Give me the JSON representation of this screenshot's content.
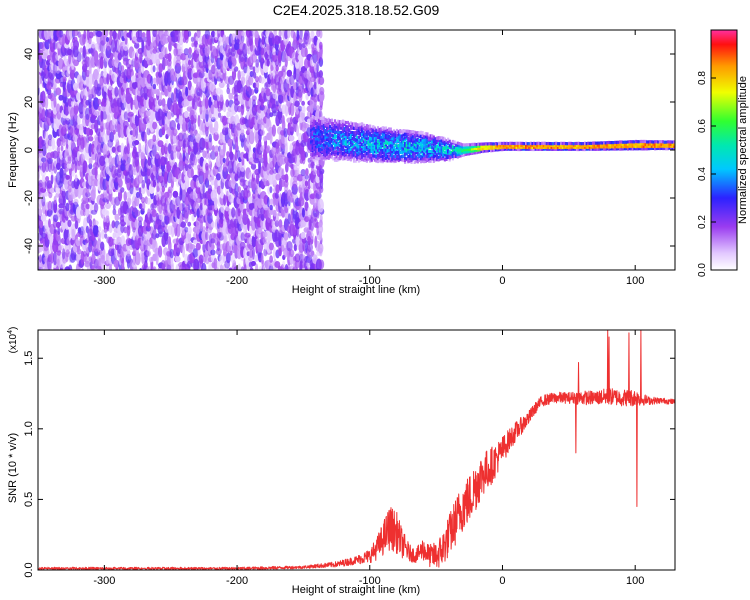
{
  "figure_title": "C2E4.2025.318.18.52.G09",
  "chart_data": [
    {
      "type": "heatmap",
      "name": "spectrogram",
      "title": "C2E4.2025.318.18.52.G09",
      "xlabel": "Height of straight line (km)",
      "ylabel": "Frequency (Hz)",
      "xlim": [
        -350,
        130
      ],
      "ylim": [
        -50,
        50
      ],
      "x_ticks": [
        -300,
        -200,
        -100,
        0,
        100
      ],
      "x_tick_labels": [
        "-300",
        "-200",
        "-100",
        "0",
        "100"
      ],
      "y_ticks": [
        -40,
        -20,
        0,
        20,
        40
      ],
      "y_tick_labels": [
        "-40",
        "-20",
        "0",
        "20",
        "40"
      ],
      "noise_region": {
        "x_range": [
          -350,
          -135
        ],
        "freq_range": [
          -50,
          50
        ],
        "amplitude_range": [
          0.05,
          0.25
        ]
      },
      "signal_band": [
        {
          "x": -145,
          "center": 5,
          "half_width": 9,
          "peak": 0.35
        },
        {
          "x": -120,
          "center": 4,
          "half_width": 8,
          "peak": 0.45
        },
        {
          "x": -90,
          "center": 2,
          "half_width": 7,
          "peak": 0.5
        },
        {
          "x": -60,
          "center": 1,
          "half_width": 6,
          "peak": 0.5
        },
        {
          "x": -40,
          "center": 0,
          "half_width": 4,
          "peak": 0.5
        },
        {
          "x": -30,
          "center": 0,
          "half_width": 2,
          "peak": 0.6
        },
        {
          "x": -15,
          "center": 1,
          "half_width": 1.5,
          "peak": 0.85
        },
        {
          "x": 0,
          "center": 1.5,
          "half_width": 1.2,
          "peak": 0.95
        },
        {
          "x": 60,
          "center": 1.5,
          "half_width": 1.2,
          "peak": 0.95
        },
        {
          "x": 100,
          "center": 2,
          "half_width": 1.5,
          "peak": 0.95
        },
        {
          "x": 130,
          "center": 2,
          "half_width": 1.3,
          "peak": 0.95
        }
      ],
      "colorbar": {
        "label": "Normalized spectral amplitude",
        "range": [
          0,
          1
        ],
        "ticks": [
          0.0,
          0.2,
          0.4,
          0.6,
          0.8
        ],
        "tick_labels": [
          "0.0",
          "0.2",
          "0.4",
          "0.6",
          "0.8"
        ]
      }
    },
    {
      "type": "line",
      "name": "snr",
      "xlabel": "Height of straight line (km)",
      "ylabel": "SNR (10 * v/v)",
      "y_multiplier_label": "(x10",
      "y_multiplier_exponent": "4",
      "y_multiplier_close": ")",
      "xlim": [
        -350,
        130
      ],
      "ylim": [
        0,
        1.7
      ],
      "x_ticks": [
        -300,
        -200,
        -100,
        0,
        100
      ],
      "x_tick_labels": [
        "-300",
        "-200",
        "-100",
        "0",
        "100"
      ],
      "y_ticks": [
        0.0,
        0.5,
        1.0,
        1.5
      ],
      "y_tick_labels": [
        "0.0",
        "0.5",
        "1.0",
        "1.5"
      ],
      "color": "#ee3030",
      "x": [
        -350,
        -300,
        -250,
        -200,
        -150,
        -125,
        -110,
        -100,
        -95,
        -90,
        -85,
        -80,
        -75,
        -70,
        -65,
        -60,
        -55,
        -50,
        -45,
        -40,
        -35,
        -30,
        -25,
        -20,
        -15,
        -10,
        -5,
        0,
        5,
        10,
        15,
        20,
        25,
        30,
        40,
        50,
        60,
        70,
        80,
        90,
        100,
        110,
        120,
        130
      ],
      "values": [
        0.01,
        0.01,
        0.01,
        0.01,
        0.02,
        0.04,
        0.07,
        0.1,
        0.15,
        0.22,
        0.3,
        0.27,
        0.18,
        0.12,
        0.1,
        0.15,
        0.1,
        0.1,
        0.15,
        0.25,
        0.35,
        0.45,
        0.5,
        0.6,
        0.68,
        0.72,
        0.78,
        0.85,
        0.92,
        0.98,
        1.03,
        1.08,
        1.15,
        1.2,
        1.22,
        1.22,
        1.22,
        1.22,
        1.23,
        1.22,
        1.22,
        1.2,
        1.2,
        1.19
      ],
      "noise_amplitude": [
        0.01,
        0.01,
        0.01,
        0.01,
        0.01,
        0.02,
        0.03,
        0.05,
        0.08,
        0.12,
        0.16,
        0.15,
        0.1,
        0.06,
        0.05,
        0.08,
        0.08,
        0.1,
        0.13,
        0.15,
        0.17,
        0.18,
        0.18,
        0.18,
        0.16,
        0.14,
        0.12,
        0.1,
        0.08,
        0.07,
        0.06,
        0.05,
        0.04,
        0.04,
        0.04,
        0.04,
        0.05,
        0.05,
        0.06,
        0.06,
        0.06,
        0.03,
        0.02,
        0.02
      ],
      "spikes": [
        {
          "x": 55,
          "value": 0.83
        },
        {
          "x": 57,
          "value": 1.47
        },
        {
          "x": 79,
          "value": 1.7
        },
        {
          "x": 80,
          "value": 1.65
        },
        {
          "x": 95,
          "value": 1.68
        },
        {
          "x": 101,
          "value": 0.45
        },
        {
          "x": 104,
          "value": 1.7
        }
      ]
    }
  ]
}
